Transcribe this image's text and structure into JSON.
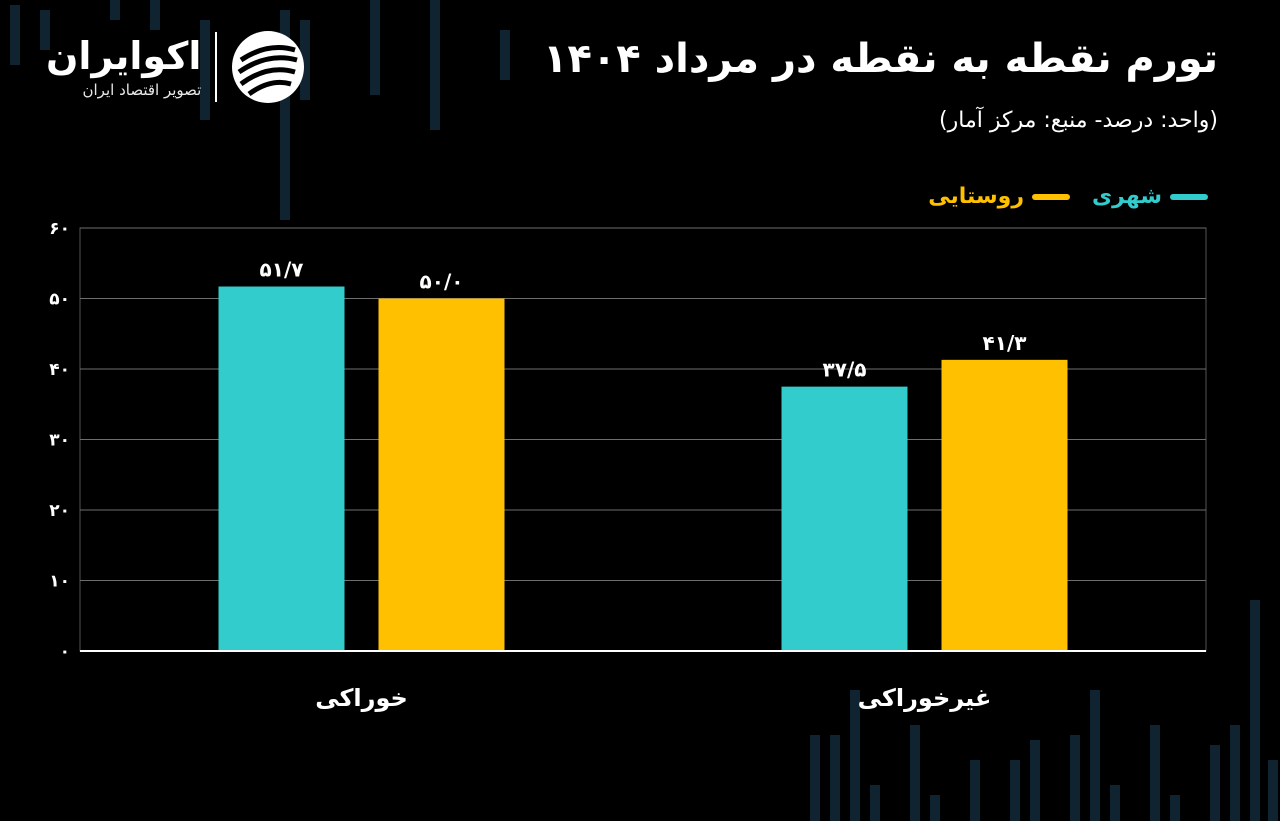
{
  "brand": {
    "name": "اکوایران",
    "tagline": "تصویر اقتصاد ایران"
  },
  "header": {
    "title": "تورم نقطه به نقطه در مرداد ۱۴۰۴",
    "subtitle": "(واحد: درصد- منبع: مرکز آمار)"
  },
  "colors": {
    "background": "#000000",
    "urban": "#33CCCC",
    "rural": "#FFC000",
    "text": "#FFFFFF",
    "grid": "#6E6E6E"
  },
  "chart_data": {
    "type": "bar",
    "title": "تورم نقطه به نقطه در مرداد ۱۴۰۴",
    "subtitle": "(واحد: درصد- منبع: مرکز آمار)",
    "categories": [
      "خوراکی",
      "غیرخوراکی"
    ],
    "series": [
      {
        "name": "شهری",
        "color": "#33CCCC",
        "values": [
          51.7,
          37.5
        ],
        "labels": [
          "۵۱/۷",
          "۳۷/۵"
        ]
      },
      {
        "name": "روستایی",
        "color": "#FFC000",
        "values": [
          50.0,
          41.3
        ],
        "labels": [
          "۵۰/۰",
          "۴۱/۳"
        ]
      }
    ],
    "ylim": [
      0,
      60
    ],
    "yticks": [
      0,
      10,
      20,
      30,
      40,
      50,
      60
    ],
    "ytick_labels": [
      "۰",
      "۱۰",
      "۲۰",
      "۳۰",
      "۴۰",
      "۵۰",
      "۶۰"
    ],
    "xlabel": "",
    "ylabel": "",
    "grid": true,
    "legend_position": "top-right"
  }
}
